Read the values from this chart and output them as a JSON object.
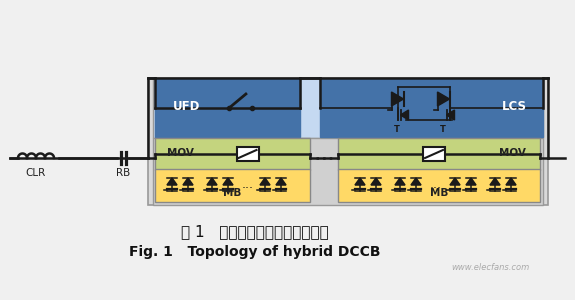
{
  "title_chinese": "图 1   混合式直流断路器拓扑结构",
  "title_english": "Fig. 1   Topology of hybrid DCCB",
  "bg_color": "#f0f0f0",
  "label_UFD": "UFD",
  "label_LCS": "LCS",
  "label_MOV1": "MOV",
  "label_MOV2": "MOV",
  "label_MB1": "MB",
  "label_MB2": "MB",
  "label_CLR": "CLR",
  "label_RB": "RB",
  "color_blue_dark": "#4472a8",
  "color_blue_light": "#c5d9f1",
  "color_green": "#c4d47e",
  "color_yellow": "#ffd966",
  "color_gray_outer": "#d9d9d9",
  "color_line": "#1a1a1a",
  "color_white": "#ffffff"
}
